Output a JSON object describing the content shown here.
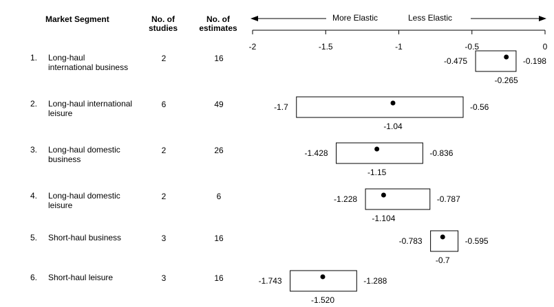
{
  "headers": {
    "segment": "Market Segment",
    "studies_1": "No. of",
    "studies_2": "studies",
    "estimates_1": "No. of",
    "estimates_2": "estimates",
    "more_elastic": "More Elastic",
    "less_elastic": "Less Elastic"
  },
  "chart_data": {
    "type": "range",
    "xlim": [
      -2,
      0
    ],
    "ticks": [
      {
        "value": -2,
        "label": "-2"
      },
      {
        "value": -1.5,
        "label": "-1.5"
      },
      {
        "value": -1,
        "label": "-1"
      },
      {
        "value": -0.5,
        "label": "-0.5"
      },
      {
        "value": 0,
        "label": "0"
      }
    ],
    "rows": [
      {
        "index": "1.",
        "segment": [
          "Long-haul",
          "international business"
        ],
        "studies": "2",
        "estimates": "16",
        "low": -0.475,
        "high": -0.198,
        "median": -0.265,
        "low_label": "-0.475",
        "high_label": "-0.198",
        "median_label": "-0.265"
      },
      {
        "index": "2.",
        "segment": [
          "Long-haul international",
          "leisure"
        ],
        "studies": "6",
        "estimates": "49",
        "low": -1.7,
        "high": -0.56,
        "median": -1.04,
        "low_label": "-1.7",
        "high_label": "-0.56",
        "median_label": "-1.04"
      },
      {
        "index": "3.",
        "segment": [
          "Long-haul domestic",
          "business"
        ],
        "studies": "2",
        "estimates": "26",
        "low": -1.428,
        "high": -0.836,
        "median": -1.15,
        "low_label": "-1.428",
        "high_label": "-0.836",
        "median_label": "-1.15"
      },
      {
        "index": "4.",
        "segment": [
          "Long-haul domestic",
          "leisure"
        ],
        "studies": "2",
        "estimates": "6",
        "low": -1.228,
        "high": -0.787,
        "median": -1.104,
        "low_label": "-1.228",
        "high_label": "-0.787",
        "median_label": "-1.104"
      },
      {
        "index": "5.",
        "segment": [
          "Short-haul business"
        ],
        "studies": "3",
        "estimates": "16",
        "low": -0.783,
        "high": -0.595,
        "median": -0.7,
        "low_label": "-0.783",
        "high_label": "-0.595",
        "median_label": "-0.7"
      },
      {
        "index": "6.",
        "segment": [
          "Short-haul leisure"
        ],
        "studies": "3",
        "estimates": "16",
        "low": -1.743,
        "high": -1.288,
        "median": -1.52,
        "low_label": "-1.743",
        "high_label": "-1.288",
        "median_label": "-1.520"
      }
    ]
  }
}
